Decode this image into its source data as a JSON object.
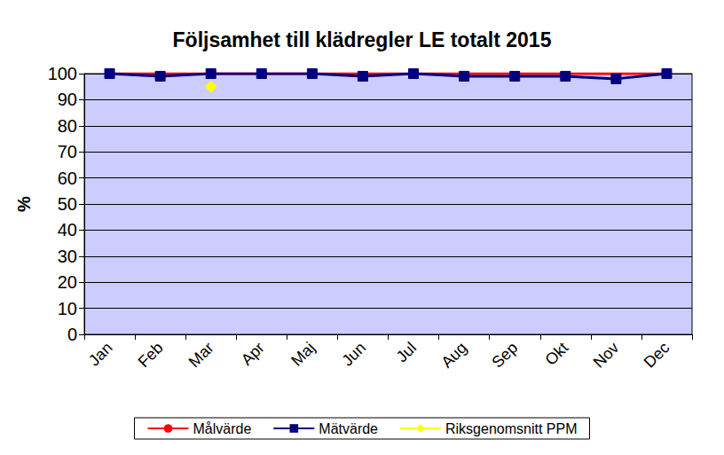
{
  "chart_data": {
    "type": "line",
    "title": "Följsamhet till klädregler LE totalt 2015",
    "y_label": "%",
    "categories": [
      "Jan",
      "Feb",
      "Mar",
      "Apr",
      "Maj",
      "Jun",
      "Jul",
      "Aug",
      "Sep",
      "Okt",
      "Nov",
      "Dec"
    ],
    "series": [
      {
        "name": "Målvärde",
        "color": "#ff0000",
        "marker": "none",
        "line_style": "solid",
        "values": [
          100,
          100,
          100,
          100,
          100,
          100,
          100,
          100,
          100,
          100,
          100,
          100
        ]
      },
      {
        "name": "Mätvärde",
        "color": "#000080",
        "marker": "square",
        "line_style": "solid",
        "values": [
          100,
          99,
          100,
          100,
          100,
          99,
          100,
          99,
          99,
          99,
          98,
          100
        ]
      },
      {
        "name": "Riksgenomsnitt PPM",
        "color": "#ffff00",
        "marker": "diamond",
        "line_style": "solid",
        "values": [
          null,
          null,
          95,
          null,
          null,
          null,
          null,
          null,
          null,
          null,
          null,
          null
        ]
      }
    ],
    "ylim": [
      0,
      100
    ],
    "yticks": [
      0,
      10,
      20,
      30,
      40,
      50,
      60,
      70,
      80,
      90,
      100
    ],
    "grid": true,
    "legend": "bottom"
  }
}
